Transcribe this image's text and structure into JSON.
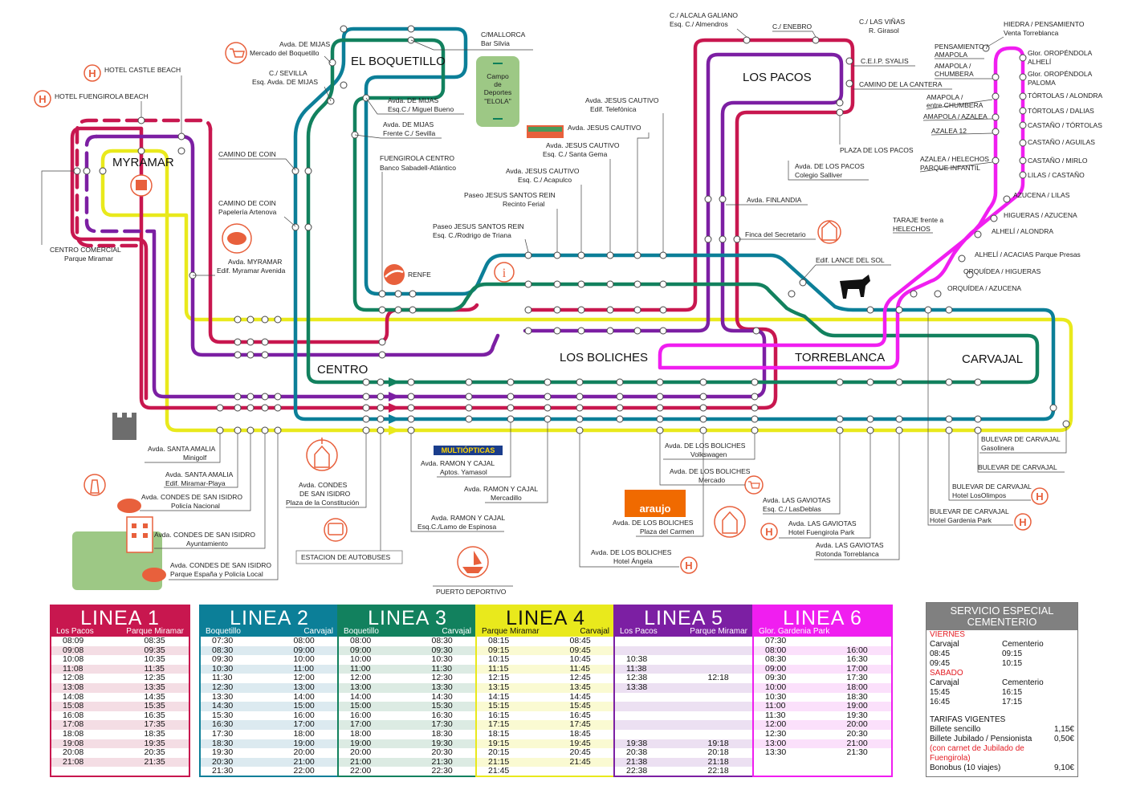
{
  "colors": {
    "linea1": "#c8174f",
    "linea2": "#0c7f98",
    "linea3": "#12815e",
    "linea4": "#e9e91c",
    "linea5": "#7c1fa3",
    "linea6": "#f01ef0",
    "poi": "#e8603c",
    "park": "#9dc885",
    "special": "#808080"
  },
  "districts": {
    "myramar": "MYRAMAR",
    "boquetillo": "EL BOQUETILLO",
    "los_pacos": "LOS PACOS",
    "centro": "CENTRO",
    "los_boliches": "LOS BOLICHES",
    "torreblanca": "TORREBLANCA",
    "carvajal": "CARVAJAL"
  },
  "labels": {
    "hotel_castle": "HOTEL CASTLE BEACH",
    "hotel_fuengirola": "HOTEL FUENGIROLA BEACH",
    "cc_l1": "CENTRO COMERCIAL",
    "cc_l2": "Parque Miramar",
    "mijas1_l1": "Avda.  DE MIJAS",
    "mijas1_l2": "Mercado del Boquetillo",
    "sevilla_l1": "C./ SEVILLA",
    "sevilla_l2": "Esq. Avda.  DE MIJAS",
    "coin1": "CAMINO  DE COIN",
    "coin2_l1": "CAMINO  DE COIN",
    "coin2_l2": "Papelería Artenova",
    "myramar_l1": "Avda.  MYRAMAR",
    "myramar_l2": "Edif. Myramar Avenida",
    "mallorca_l1": "C/MALLORCA",
    "mallorca_l2": "Bar Silvia",
    "campo_l1": "Campo",
    "campo_l2": "de",
    "campo_l3": "Deportes",
    "campo_l4": "\"ELOLA\"",
    "mijas2_l1": "Avda.  DE MIJAS",
    "mijas2_l2": "Esq.C./ Miguel  Bueno",
    "mijas3_l1": "Avda.  DE MIJAS",
    "mijas3_l2": "Frente C./ Sevilla",
    "fcentro_l1": "FUENGIROLA CENTRO",
    "fcentro_l2": "Banco Sabadell-Atlántico",
    "renfe": "RENFE",
    "jc1_l1": "Avda.  JESUS CAUTIVO",
    "jc1_l2": "Edif. Telefónica",
    "jc2": "Avda.  JESUS CAUTIVO",
    "jc3_l1": "Avda.  JESUS CAUTIVO",
    "jc3_l2": "Esq. C./ Santa Gema",
    "jc4_l1": "Avda.  JESUS CAUTIVO",
    "jc4_l2": "Esq. C./ Acapulco",
    "jsr1_l1": "Paseo JESUS SANTOS REIN",
    "jsr1_l2": "Recinto Ferial",
    "jsr2_l1": "Paseo JESUS SANTOS REIN",
    "jsr2_l2": "Esq. C./Rodrigo de Triana",
    "alcala_l1": "C./ ALCALA GALIANO",
    "alcala_l2": "Esq. C./ Almendros",
    "enebro": "C./ ENEBRO",
    "vinas_l1": "C./ LAS VIÑAS",
    "vinas_l2": "R. Girasol",
    "ceip": "C.E.I.P. SYALIS",
    "cantera": "CAMINO  DE LA CANTERA",
    "plaza_pacos": "PLAZA DE LOS PACOS",
    "pacos_l1": "Avda.  DE LOS PACOS",
    "pacos_l2": "Colegio Salliver",
    "finlandia": "Avda.  FINLANDIA",
    "finca": "Finca  del Secretario",
    "lance": "Edif. LANCE DEL SOL",
    "hiedra_l1": "HIEDRA / PENSAMIENTO",
    "hiedra_l2": "Venta Torreblanca",
    "pens_l1": "PENSAMIENTO /",
    "pens_l2": "AMAPOLA",
    "amap1_l1": "AMAPOLA /",
    "amap1_l2": "CHUMBERA",
    "amap2_l1": "AMAPOLA /",
    "amap2_l2": "entre CHUMBERA",
    "amap3": "AMAPOLA / AZALEA",
    "azalea12": "AZALEA 12",
    "azalea_l1": "AZALEA / HELECHOS",
    "azalea_l2": "PARQUE INFANTIL",
    "taraje_l1": "TARAJE frente a",
    "taraje_l2": "HELECHOS",
    "glor1_l1": "Glor. OROPÉNDOLA",
    "glor1_l2": "ALHELÍ",
    "glor2_l1": "Glor. OROPÉNDOLA",
    "glor2_l2": "PALOMA",
    "tort1": "TÓRTOLAS / ALONDRA",
    "tort2": "TÓRTOLAS / DALIAS",
    "cast1": "CASTAÑO / TÓRTOLAS",
    "cast2": "CASTAÑO / AGUILAS",
    "cast3": "CASTAÑO / MIRLO",
    "lilas": "LILAS / CASTAÑO",
    "azucena": "AZUCENA / LILAS",
    "higueras": "HIGUERAS / AZUCENA",
    "alheli1": "ALHELÍ / ALONDRA",
    "alheli2": "ALHELÍ / ACACIAS Parque Presas",
    "orq1": "ORQUÍDEA / HIGUERAS",
    "orq2": "ORQUÍDEA / AZUCENA",
    "amalia1_l1": "Avda. SANTA AMALIA",
    "amalia1_l2": "Minigolf",
    "amalia2_l1": "Avda. SANTA AMALIA",
    "amalia2_l2": "Edif. Miramar-Playa",
    "csi1_l1": "Avda. CONDES DE SAN ISIDRO",
    "csi1_l2": "Policía Nacional",
    "csi2_l1": "Avda.  CONDES DE SAN ISIDRO",
    "csi2_l2": "Ayuntamiento",
    "csi3_l1": "Avda.  CONDES DE SAN ISIDRO",
    "csi3_l2": "Parque España y Policía Local",
    "csi4_l1": "Avda.  CONDES",
    "csi4_l2": "DE SAN ISIDRO",
    "csi4_l3": "Plaza de la Constitución",
    "estacion": "ESTACION DE AUTOBUSES",
    "puerto": "PUERTO DEPORTIVO",
    "multi": "MULTIÓPTICAS",
    "rc1_l1": "Avda.  RAMON Y CAJAL",
    "rc1_l2": "Aptos.  Yamasol",
    "rc2_l1": "Avda.  RAMON Y CAJAL",
    "rc2_l2": "Mercadillo",
    "rc3_l1": "Avda.  RAMON Y CAJAL",
    "rc3_l2": "Esq.C./Lamo de Espinosa",
    "araujo": "araujo",
    "bol1_l1": "Avda.  DE LOS BOLICHES",
    "bol1_l2": "Volkswagen",
    "bol2_l1": "Avda.  DE LOS BOLICHES",
    "bol2_l2": "Mercado",
    "bol3_l1": "Avda.  DE LOS BOLICHES",
    "bol3_l2": "Plaza del Carmen",
    "bol4_l1": "Avda. DE LOS BOLICHES",
    "bol4_l2": "Hotel Ángela",
    "gav1_l1": "Avda.  LAS GAVIOTAS",
    "gav1_l2": "Esq. C./ LasDeblas",
    "gav2_l1": "Avda.  LAS GAVIOTAS",
    "gav2_l2": "Hotel Fuengirola Park",
    "gav3_l1": "Avda.  LAS GAVIOTAS",
    "gav3_l2": "Rotonda Torreblanca",
    "bc1_l1": "BULEVAR DE CARVAJAL",
    "bc1_l2": "Gasolinera",
    "bc2": "BULEVAR DE CARVAJAL",
    "bc3_l1": "BULEVAR DE CARVAJAL",
    "bc3_l2": "Hotel LosOlimpos",
    "bc4_l1": "BULEVAR DE CARVAJAL",
    "bc4_l2": "Hotel Gardenia Park"
  },
  "timetables": [
    {
      "title": "LINEA 1",
      "from": "Los Pacos",
      "to": "Parque Miramar",
      "color": "#c8174f",
      "band": "#f4dde4",
      "rows": [
        [
          "08:09",
          "08:35"
        ],
        [
          "09:08",
          "09:35"
        ],
        [
          "10:08",
          "10:35"
        ],
        [
          "11:08",
          "11:35"
        ],
        [
          "12:08",
          "12:35"
        ],
        [
          "13:08",
          "13:35"
        ],
        [
          "14:08",
          "14:35"
        ],
        [
          "15:08",
          "15:35"
        ],
        [
          "16:08",
          "16:35"
        ],
        [
          "17:08",
          "17:35"
        ],
        [
          "18:08",
          "18:35"
        ],
        [
          "19:08",
          "19:35"
        ],
        [
          "20:08",
          "20:35"
        ],
        [
          "21:08",
          "21:35"
        ]
      ]
    },
    {
      "title": "LINEA 2",
      "from": "Boquetillo",
      "to": "Carvajal",
      "color": "#0c7f98",
      "band": "#dceaf0",
      "rows": [
        [
          "07:30",
          "08:00"
        ],
        [
          "08:30",
          "09:00"
        ],
        [
          "09:30",
          "10:00"
        ],
        [
          "10:30",
          "11:00"
        ],
        [
          "11:30",
          "12:00"
        ],
        [
          "12:30",
          "13:00"
        ],
        [
          "13:30",
          "14:00"
        ],
        [
          "14:30",
          "15:00"
        ],
        [
          "15:30",
          "16:00"
        ],
        [
          "16:30",
          "17:00"
        ],
        [
          "17:30",
          "18:00"
        ],
        [
          "18:30",
          "19:00"
        ],
        [
          "19:30",
          "20:00"
        ],
        [
          "20:30",
          "21:00"
        ],
        [
          "21:30",
          "22:00"
        ]
      ]
    },
    {
      "title": "LINEA 3",
      "from": "Boquetillo",
      "to": "Carvajal",
      "color": "#12815e",
      "band": "#dcebe3",
      "rows": [
        [
          "08:00",
          "08:30"
        ],
        [
          "09:00",
          "09:30"
        ],
        [
          "10:00",
          "10:30"
        ],
        [
          "11:00",
          "11:30"
        ],
        [
          "12:00",
          "12:30"
        ],
        [
          "13:00",
          "13:30"
        ],
        [
          "14:00",
          "14:30"
        ],
        [
          "15:00",
          "15:30"
        ],
        [
          "16:00",
          "16:30"
        ],
        [
          "17:00",
          "17:30"
        ],
        [
          "18:00",
          "18:30"
        ],
        [
          "19:00",
          "19:30"
        ],
        [
          "20:00",
          "20:30"
        ],
        [
          "21:00",
          "21:30"
        ],
        [
          "22:00",
          "22:30"
        ]
      ]
    },
    {
      "title": "LINEA 4",
      "from": "Parque Miramar",
      "to": "Carvajal",
      "color": "#e9e91c",
      "band": "#fafad2",
      "rows": [
        [
          "08:15",
          "08:45"
        ],
        [
          "09:15",
          "09:45"
        ],
        [
          "10:15",
          "10:45"
        ],
        [
          "11:15",
          "11:45"
        ],
        [
          "12:15",
          "12:45"
        ],
        [
          "13:15",
          "13:45"
        ],
        [
          "14:15",
          "14:45"
        ],
        [
          "15:15",
          "15:45"
        ],
        [
          "16:15",
          "16:45"
        ],
        [
          "17:15",
          "17:45"
        ],
        [
          "18:15",
          "18:45"
        ],
        [
          "19:15",
          "19:45"
        ],
        [
          "20:15",
          "20:45"
        ],
        [
          "21:15",
          "21:45"
        ],
        [
          "21:45",
          ""
        ]
      ]
    },
    {
      "title": "LINEA 5",
      "from": "Los Pacos",
      "to": "Parque Miramar",
      "color": "#7c1fa3",
      "band": "#ece0f2",
      "rows": [
        [
          "",
          ""
        ],
        [
          "",
          ""
        ],
        [
          "10:38",
          ""
        ],
        [
          "11:38",
          ""
        ],
        [
          "12:38",
          "12:18"
        ],
        [
          "13:38",
          ""
        ],
        [
          "",
          ""
        ],
        [
          "",
          ""
        ],
        [
          "",
          ""
        ],
        [
          "",
          ""
        ],
        [
          "",
          ""
        ],
        [
          "19:38",
          "19:18"
        ],
        [
          "20:38",
          "20:18"
        ],
        [
          "21:38",
          "21:18"
        ],
        [
          "22:38",
          "22:18"
        ]
      ]
    },
    {
      "title": "LINEA 6",
      "from": "Glor. Gardenia Park",
      "to": "",
      "color": "#f01ef0",
      "band": "#fbe0fb",
      "rows": [
        [
          "07:30",
          ""
        ],
        [
          "08:00",
          "16:00"
        ],
        [
          "08:30",
          "16:30"
        ],
        [
          "09:00",
          "17:00"
        ],
        [
          "09:30",
          "17:30"
        ],
        [
          "10:00",
          "18:00"
        ],
        [
          "10:30",
          "18:30"
        ],
        [
          "11:00",
          "19:00"
        ],
        [
          "11:30",
          "19:30"
        ],
        [
          "12:00",
          "20:00"
        ],
        [
          "12:30",
          "20:30"
        ],
        [
          "13:00",
          "21:00"
        ],
        [
          "13:30",
          "21:30"
        ]
      ]
    }
  ],
  "special": {
    "title_l1": "SERVICIO  ESPECIAL",
    "title_l2": "CEMENTERIO",
    "viernes": "VIERNES",
    "sabado": "SABADO",
    "from": "Carvajal",
    "to": "Cementerio",
    "v1a": "08:45",
    "v1b": "09:15",
    "v2a": "09:45",
    "v2b": "10:15",
    "s1a": "15:45",
    "s1b": "16:15",
    "s2a": "16:45",
    "s2b": "17:15",
    "tarifas": "TARIFAS VIGENTES",
    "t1": "Billete sencillo",
    "t1v": "1,15€",
    "t2": "Billete Jubilado / Pensionista",
    "t2v": "0,50€",
    "note_l1": "(con carnet de Jubilado de",
    "note_l2": "Fuengirola)",
    "t3": "Bonobus  (10  viajes)",
    "t3v": "9,10€"
  }
}
